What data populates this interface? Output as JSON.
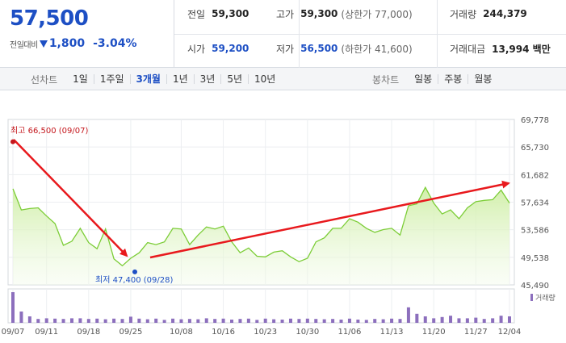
{
  "quote": {
    "price": "57,500",
    "change_label": "전일대비",
    "change_amount": "1,800",
    "change_rate": "-3.04%",
    "prev_close_label": "전일",
    "prev_close": "59,300",
    "high_label": "고가",
    "high": "59,300",
    "upper_limit": "(상한가 77,000)",
    "volume_label": "거래량",
    "volume": "244,379",
    "open_label": "시가",
    "open": "59,200",
    "low_label": "저가",
    "low": "56,500",
    "lower_limit": "(하한가 41,600)",
    "turnover_label": "거래대금",
    "turnover": "13,994 백만",
    "colors": {
      "down": "#1d4fc4",
      "up": "#c4161c"
    }
  },
  "tabs": {
    "line_chart_label": "선차트",
    "periods": [
      "1일",
      "1주일",
      "3개월",
      "1년",
      "3년",
      "5년",
      "10년"
    ],
    "active_period": "3개월",
    "candle_chart_label": "봉차트",
    "candles": [
      "일봉",
      "주봉",
      "월봉"
    ]
  },
  "chart_data": {
    "type": "area",
    "y_ticks": [
      "69,778",
      "65,730",
      "61,682",
      "57,634",
      "53,586",
      "49,538",
      "45,490"
    ],
    "ylim": [
      45490,
      69778
    ],
    "x_ticks": [
      "09/07",
      "09/11",
      "09/18",
      "09/25",
      "10/08",
      "10/16",
      "10/23",
      "10/30",
      "11/06",
      "11/13",
      "11/20",
      "11/27",
      "12/04"
    ],
    "x_tick_index": [
      0,
      4,
      9,
      14,
      20,
      25,
      30,
      35,
      40,
      45,
      50,
      55,
      59
    ],
    "values": [
      59600,
      56500,
      56700,
      56800,
      55600,
      54500,
      51300,
      51900,
      53800,
      51700,
      50800,
      53700,
      49300,
      48300,
      49400,
      50200,
      51700,
      51400,
      51800,
      53800,
      53700,
      51400,
      52800,
      54000,
      53700,
      54100,
      51800,
      50200,
      50900,
      49700,
      49600,
      50300,
      50500,
      49600,
      48900,
      49400,
      51800,
      52400,
      53800,
      53800,
      55200,
      54700,
      53800,
      53200,
      53600,
      53800,
      52800,
      57100,
      57400,
      59800,
      57500,
      55900,
      56500,
      55200,
      56800,
      57700,
      57900,
      58000,
      59400,
      57500
    ],
    "volume_label": "거래량",
    "volume": [
      95,
      35,
      20,
      12,
      14,
      13,
      12,
      14,
      14,
      12,
      13,
      11,
      13,
      12,
      19,
      13,
      11,
      13,
      9,
      13,
      11,
      12,
      11,
      14,
      12,
      13,
      10,
      12,
      13,
      9,
      13,
      11,
      10,
      13,
      12,
      13,
      12,
      11,
      12,
      10,
      13,
      10,
      9,
      12,
      11,
      13,
      12,
      48,
      28,
      20,
      14,
      18,
      22,
      14,
      14,
      16,
      12,
      14,
      22,
      20
    ],
    "annotations": {
      "high_label": "최고 66,500 (09/07)",
      "high_value": 66500,
      "low_label": "최저 47,400 (09/28)",
      "low_value": 47400
    }
  }
}
